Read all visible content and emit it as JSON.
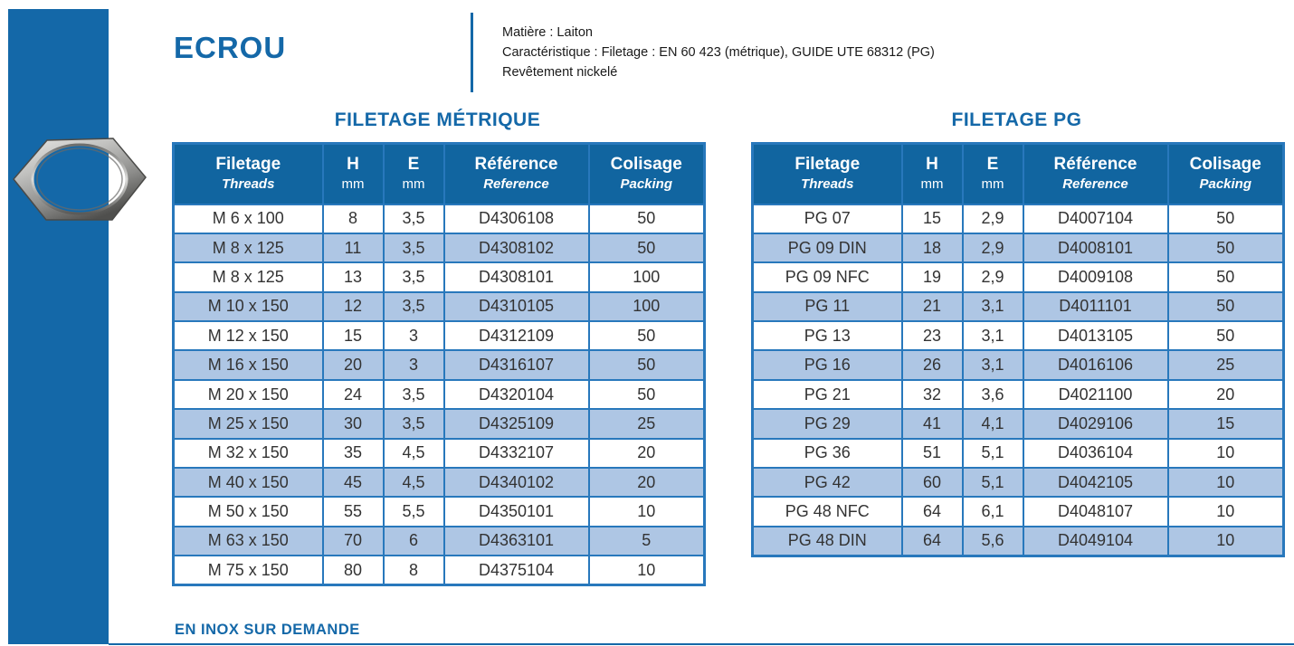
{
  "page": {
    "title": "ECROU",
    "footer_note": "EN INOX SUR DEMANDE"
  },
  "info": {
    "lines": [
      "Matière : Laiton",
      "Caractéristique : Filetage : EN 60 423 (métrique), GUIDE UTE 68312 (PG)",
      "Revêtement nickelé"
    ]
  },
  "colors": {
    "brand": "#1468A8",
    "table_header_bg": "#1165A0",
    "table_border": "#2878BC",
    "row_alternate": "#AEC6E4",
    "cell_text": "#333333"
  },
  "tables": [
    {
      "id": "filetage-metrique",
      "title": "FILETAGE MÉTRIQUE",
      "columns": [
        {
          "label": "Filetage",
          "sublabel": "Threads"
        },
        {
          "label": "H",
          "sublabel": "mm"
        },
        {
          "label": "E",
          "sublabel": "mm"
        },
        {
          "label": "Référence",
          "sublabel": "Reference"
        },
        {
          "label": "Colisage",
          "sublabel": "Packing"
        }
      ],
      "rows": [
        [
          "M 6 x 100",
          "8",
          "3,5",
          "D4306108",
          "50"
        ],
        [
          "M 8 x 125",
          "11",
          "3,5",
          "D4308102",
          "50"
        ],
        [
          "M 8 x 125",
          "13",
          "3,5",
          "D4308101",
          "100"
        ],
        [
          "M 10 x 150",
          "12",
          "3,5",
          "D4310105",
          "100"
        ],
        [
          "M 12 x 150",
          "15",
          "3",
          "D4312109",
          "50"
        ],
        [
          "M 16 x 150",
          "20",
          "3",
          "D4316107",
          "50"
        ],
        [
          "M 20 x 150",
          "24",
          "3,5",
          "D4320104",
          "50"
        ],
        [
          "M 25 x 150",
          "30",
          "3,5",
          "D4325109",
          "25"
        ],
        [
          "M 32 x 150",
          "35",
          "4,5",
          "D4332107",
          "20"
        ],
        [
          "M 40 x 150",
          "45",
          "4,5",
          "D4340102",
          "20"
        ],
        [
          "M 50 x 150",
          "55",
          "5,5",
          "D4350101",
          "10"
        ],
        [
          "M 63 x 150",
          "70",
          "6",
          "D4363101",
          "5"
        ],
        [
          "M 75 x 150",
          "80",
          "8",
          "D4375104",
          "10"
        ]
      ]
    },
    {
      "id": "filetage-pg",
      "title": "FILETAGE PG",
      "columns": [
        {
          "label": "Filetage",
          "sublabel": "Threads"
        },
        {
          "label": "H",
          "sublabel": "mm"
        },
        {
          "label": "E",
          "sublabel": "mm"
        },
        {
          "label": "Référence",
          "sublabel": "Reference"
        },
        {
          "label": "Colisage",
          "sublabel": "Packing"
        }
      ],
      "rows": [
        [
          "PG 07",
          "15",
          "2,9",
          "D4007104",
          "50"
        ],
        [
          "PG 09 DIN",
          "18",
          "2,9",
          "D4008101",
          "50"
        ],
        [
          "PG 09 NFC",
          "19",
          "2,9",
          "D4009108",
          "50"
        ],
        [
          "PG 11",
          "21",
          "3,1",
          "D4011101",
          "50"
        ],
        [
          "PG 13",
          "23",
          "3,1",
          "D4013105",
          "50"
        ],
        [
          "PG 16",
          "26",
          "3,1",
          "D4016106",
          "25"
        ],
        [
          "PG 21",
          "32",
          "3,6",
          "D4021100",
          "20"
        ],
        [
          "PG 29",
          "41",
          "4,1",
          "D4029106",
          "15"
        ],
        [
          "PG 36",
          "51",
          "5,1",
          "D4036104",
          "10"
        ],
        [
          "PG 42",
          "60",
          "5,1",
          "D4042105",
          "10"
        ],
        [
          "PG 48 NFC",
          "64",
          "6,1",
          "D4048107",
          "10"
        ],
        [
          "PG 48 DIN",
          "64",
          "5,6",
          "D4049104",
          "10"
        ]
      ]
    }
  ]
}
